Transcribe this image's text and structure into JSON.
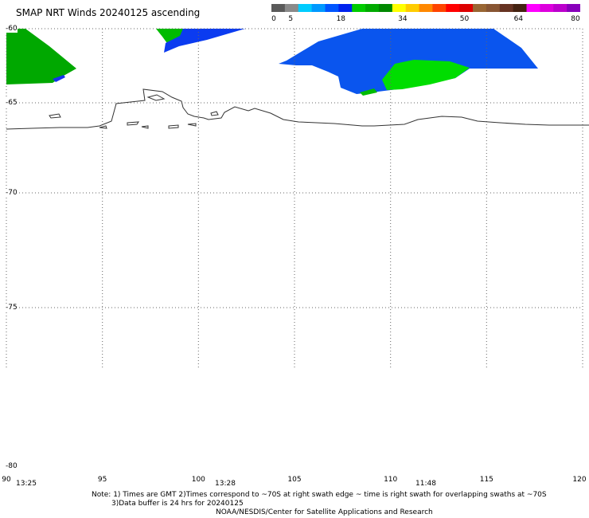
{
  "title": "SMAP NRT Winds 20240125 ascending",
  "colorbar": {
    "ticks": [
      "0",
      "5",
      "18",
      "34",
      "50",
      "64",
      "80"
    ],
    "segments": [
      "#5a5a5a",
      "#8a8a8a",
      "#00ccff",
      "#0099ff",
      "#0055ff",
      "#0022ee",
      "#00cc00",
      "#00aa00",
      "#008800",
      "#ffff00",
      "#ffcc00",
      "#ff8800",
      "#ff4400",
      "#ff0000",
      "#dd0000",
      "#996633",
      "#885533",
      "#663322",
      "#442211",
      "#ff00ff",
      "#dd00dd",
      "#bb00cc",
      "#8800bb"
    ]
  },
  "map_data": {
    "lon_range": [
      90,
      120
    ],
    "lat_range": [
      -80,
      -60
    ],
    "lat_ticks": [
      "-60",
      "-65",
      "-70",
      "-75",
      "-80"
    ],
    "lon_ticks": [
      "90",
      "95",
      "100",
      "105",
      "110",
      "115",
      "120"
    ],
    "swath_times": [
      "13:25",
      "13:28",
      "11:48"
    ]
  },
  "notes": {
    "line1": "Note: 1) Times are GMT 2)Times correspond to ~70S at right swath edge ~ time is right swath for overlapping swaths at ~70S",
    "line2": "3)Data buffer is 24 hrs for 20240125",
    "line3": "NOAA/NESDIS/Center for Satellite Applications and Research"
  }
}
